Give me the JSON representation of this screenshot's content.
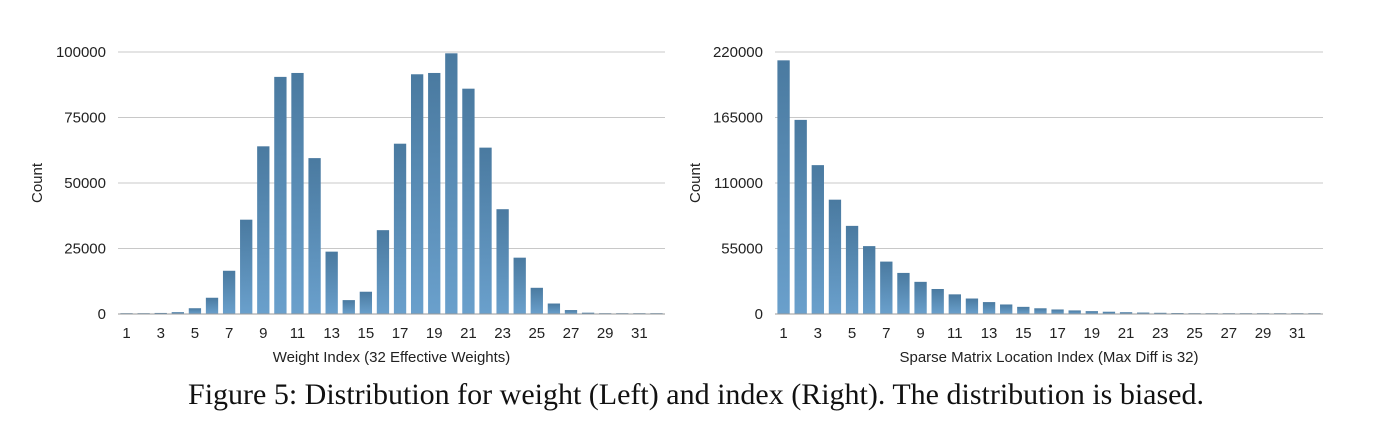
{
  "caption": "Figure 5: Distribution for weight (Left) and index (Right). The distribution is biased.",
  "bar_color_top": "#4a7aa0",
  "bar_color_bottom": "#6aa0cc",
  "chart_data": [
    {
      "type": "bar",
      "title": "",
      "xlabel": "Weight Index (32 Effective Weights)",
      "ylabel": "Count",
      "categories": [
        1,
        2,
        3,
        4,
        5,
        6,
        7,
        8,
        9,
        10,
        11,
        12,
        13,
        14,
        15,
        16,
        17,
        18,
        19,
        20,
        21,
        22,
        23,
        24,
        25,
        26,
        27,
        28,
        29,
        30,
        31,
        32
      ],
      "x_tick_labels": [
        "1",
        "3",
        "5",
        "7",
        "9",
        "11",
        "13",
        "15",
        "17",
        "19",
        "21",
        "23",
        "25",
        "27",
        "29",
        "31"
      ],
      "values": [
        200,
        300,
        400,
        700,
        2200,
        6200,
        16500,
        36000,
        64000,
        90500,
        92000,
        59500,
        23800,
        5300,
        8500,
        32000,
        65000,
        91500,
        92000,
        99500,
        86000,
        63500,
        40000,
        21500,
        10000,
        4000,
        1500,
        500,
        300,
        200,
        150,
        100
      ],
      "ylim": [
        0,
        100000
      ],
      "y_ticks": [
        "0",
        "25000",
        "50000",
        "75000",
        "100000"
      ],
      "grid": true,
      "legend": "none"
    },
    {
      "type": "bar",
      "title": "",
      "xlabel": "Sparse Matrix Location Index (Max Diff is 32)",
      "ylabel": "Count",
      "categories": [
        1,
        2,
        3,
        4,
        5,
        6,
        7,
        8,
        9,
        10,
        11,
        12,
        13,
        14,
        15,
        16,
        17,
        18,
        19,
        20,
        21,
        22,
        23,
        24,
        25,
        26,
        27,
        28,
        29,
        30,
        31,
        32
      ],
      "x_tick_labels": [
        "1",
        "3",
        "5",
        "7",
        "9",
        "11",
        "13",
        "15",
        "17",
        "19",
        "21",
        "23",
        "25",
        "27",
        "29",
        "31"
      ],
      "values": [
        213000,
        163000,
        125000,
        96000,
        74000,
        57000,
        44000,
        34500,
        27000,
        21000,
        16500,
        13000,
        10000,
        8000,
        6000,
        4800,
        3800,
        3000,
        2400,
        1900,
        1500,
        1200,
        1000,
        800,
        650,
        520,
        420,
        350,
        300,
        260,
        230,
        200
      ],
      "ylim": [
        0,
        220000
      ],
      "y_ticks": [
        "0",
        "55000",
        "110000",
        "165000",
        "220000"
      ],
      "grid": true,
      "legend": "none"
    }
  ]
}
